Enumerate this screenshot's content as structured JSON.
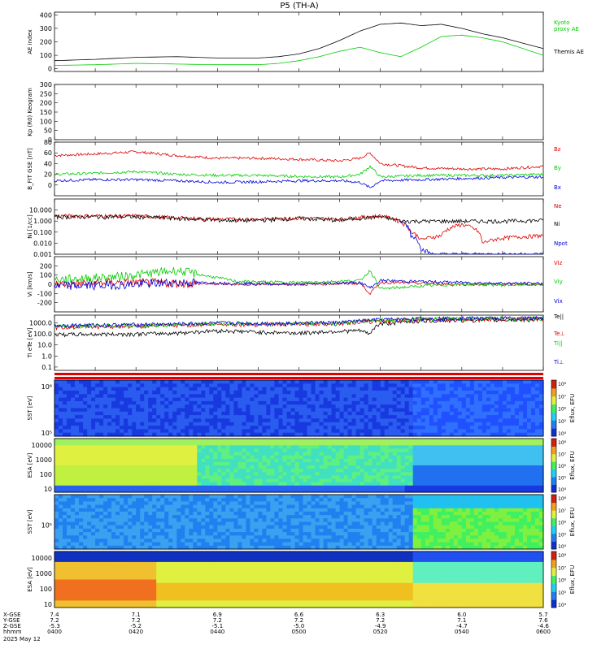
{
  "title": "P5 (TH-A)",
  "date_label": "2025 May 12",
  "colors": {
    "black": "#000000",
    "green": "#00cc00",
    "red": "#dd0000",
    "blue": "#0000dd"
  },
  "colorbar_label": "Eflux, EFU",
  "ephemeris": {
    "row_labels": [
      "X-GSE",
      "Y-GSE",
      "Z-GSE",
      "hhmm"
    ],
    "columns": [
      {
        "x": "7.4",
        "y": "7.2",
        "z": "-5.3",
        "t": "0400"
      },
      {
        "x": "7.1",
        "y": "7.2",
        "z": "-5.2",
        "t": "0420"
      },
      {
        "x": "6.9",
        "y": "7.2",
        "z": "-5.1",
        "t": "0440"
      },
      {
        "x": "6.6",
        "y": "7.2",
        "z": "-5.0",
        "t": "0500"
      },
      {
        "x": "6.3",
        "y": "7.2",
        "z": "-4.9",
        "t": "0520"
      },
      {
        "x": "6.0",
        "y": "7.1",
        "z": "-4.7",
        "t": "0540"
      },
      {
        "x": "5.7",
        "y": "7.6",
        "z": "-4.6",
        "t": "0600"
      }
    ]
  },
  "chart_data": [
    {
      "type": "line",
      "panel": "ae",
      "ylabel": "AE index",
      "ylim": [
        -20,
        420
      ],
      "yticks": [
        "0",
        "100",
        "200",
        "300",
        "400"
      ],
      "ytick_values": [
        0,
        100,
        200,
        300,
        400
      ],
      "x_unit": "minutes after 04:00",
      "series": [
        {
          "name": "Kyoto proxy AE",
          "color": "green",
          "x": [
            0,
            20,
            40,
            60,
            80,
            100,
            110,
            120,
            130,
            140,
            150,
            160,
            170,
            180,
            190,
            200,
            210,
            220,
            240
          ],
          "values": [
            25,
            30,
            40,
            35,
            30,
            30,
            40,
            60,
            90,
            130,
            160,
            120,
            90,
            160,
            240,
            250,
            230,
            200,
            100
          ]
        },
        {
          "name": "Themis AE",
          "color": "black",
          "x": [
            0,
            20,
            40,
            60,
            80,
            100,
            110,
            120,
            130,
            140,
            150,
            160,
            170,
            180,
            190,
            200,
            210,
            220,
            240
          ],
          "values": [
            60,
            70,
            85,
            90,
            80,
            80,
            90,
            110,
            150,
            210,
            280,
            330,
            340,
            320,
            330,
            300,
            260,
            230,
            150
          ]
        }
      ]
    },
    {
      "type": "line",
      "panel": "kp",
      "ylabel": "Kp (R0) Keogram",
      "ylim": [
        0,
        300
      ],
      "yticks": [
        "0",
        "50",
        "100",
        "150",
        "200",
        "250",
        "300"
      ],
      "ytick_values": [
        0,
        50,
        100,
        150,
        200,
        250,
        300
      ],
      "series": []
    },
    {
      "type": "line",
      "panel": "bfield",
      "ylabel": "B_FIT GSE [nT]",
      "ylim": [
        -20,
        80
      ],
      "yticks": [
        "0",
        "20",
        "40",
        "60",
        "80"
      ],
      "ytick_values": [
        0,
        20,
        40,
        60,
        80
      ],
      "series": [
        {
          "name": "Bz",
          "color": "red",
          "x": [
            0,
            20,
            40,
            60,
            80,
            100,
            120,
            140,
            150,
            155,
            160,
            180,
            200,
            220,
            240
          ],
          "values": [
            55,
            58,
            62,
            55,
            50,
            50,
            48,
            45,
            50,
            60,
            40,
            32,
            30,
            30,
            35
          ]
        },
        {
          "name": "By",
          "color": "green",
          "x": [
            0,
            20,
            40,
            60,
            80,
            100,
            120,
            140,
            150,
            155,
            160,
            180,
            200,
            220,
            240
          ],
          "values": [
            20,
            22,
            25,
            20,
            18,
            18,
            16,
            15,
            20,
            35,
            15,
            18,
            18,
            18,
            20
          ]
        },
        {
          "name": "Bx",
          "color": "blue",
          "x": [
            0,
            20,
            40,
            60,
            80,
            100,
            120,
            140,
            150,
            155,
            160,
            180,
            200,
            220,
            240
          ],
          "values": [
            8,
            10,
            10,
            8,
            5,
            6,
            8,
            8,
            5,
            -5,
            8,
            10,
            12,
            14,
            15
          ]
        }
      ]
    },
    {
      "type": "line",
      "panel": "density",
      "ylabel": "Ni [1/cc]",
      "yscale": "log",
      "ylim": [
        0.001,
        100
      ],
      "yticks": [
        "0.001",
        "0.010",
        "0.100",
        "1.000",
        "10.000"
      ],
      "ytick_values": [
        0.001,
        0.01,
        0.1,
        1,
        10
      ],
      "series": [
        {
          "name": "Ne",
          "color": "red",
          "x": [
            0,
            40,
            60,
            80,
            100,
            120,
            140,
            160,
            170,
            175,
            180,
            190,
            200,
            210,
            220,
            240
          ],
          "values": [
            3,
            3,
            2,
            1.5,
            1.5,
            2,
            1.5,
            3,
            0.8,
            0.1,
            0.02,
            0.05,
            0.5,
            0.01,
            0.03,
            0.05
          ]
        },
        {
          "name": "Ni",
          "color": "black",
          "x": [
            0,
            40,
            60,
            80,
            100,
            120,
            140,
            160,
            170,
            180,
            200,
            220,
            240
          ],
          "values": [
            2.5,
            2.5,
            1.8,
            1.2,
            1.2,
            1.8,
            1.2,
            2.5,
            1.0,
            1.0,
            1.0,
            1.0,
            1.2
          ]
        },
        {
          "name": "Npot",
          "color": "blue",
          "x": [
            170,
            175,
            180,
            185,
            195,
            200,
            205,
            210,
            220,
            240
          ],
          "values": [
            1.0,
            0.05,
            0.003,
            0.001,
            0.001,
            0.001,
            0.001,
            0.001,
            0.001,
            0.001
          ]
        }
      ]
    },
    {
      "type": "line",
      "panel": "velocity",
      "ylabel": "Vi [km/s]",
      "ylim": [
        -300,
        300
      ],
      "yticks": [
        "-200",
        "-100",
        "0",
        "100",
        "200"
      ],
      "ytick_values": [
        -200,
        -100,
        0,
        100,
        200
      ],
      "series": [
        {
          "name": "Viz",
          "color": "red",
          "x": [
            0,
            30,
            60,
            90,
            120,
            150,
            155,
            160,
            180,
            200,
            220,
            240
          ],
          "values": [
            0,
            20,
            10,
            0,
            0,
            10,
            -100,
            20,
            10,
            0,
            0,
            0
          ]
        },
        {
          "name": "Viy",
          "color": "green",
          "x": [
            0,
            30,
            60,
            90,
            120,
            150,
            155,
            160,
            180,
            200,
            220,
            240
          ],
          "values": [
            50,
            80,
            150,
            30,
            20,
            40,
            150,
            -50,
            -20,
            0,
            -10,
            0
          ]
        },
        {
          "name": "Vix",
          "color": "blue",
          "x": [
            0,
            30,
            60,
            90,
            120,
            150,
            155,
            160,
            180,
            200,
            220,
            240
          ],
          "values": [
            -20,
            -10,
            20,
            10,
            0,
            20,
            -40,
            40,
            30,
            20,
            10,
            10
          ]
        }
      ]
    },
    {
      "type": "line",
      "panel": "temperature",
      "ylabel": "Ti eTe [eV]",
      "yscale": "log",
      "ylim": [
        0.05,
        5000
      ],
      "yticks": [
        "0.1",
        "1.0",
        "10.0",
        "100.0",
        "1000.0"
      ],
      "ytick_values": [
        0.1,
        1,
        10,
        100,
        1000
      ],
      "series": [
        {
          "name": "Te||",
          "color": "black",
          "x": [
            0,
            40,
            60,
            80,
            100,
            120,
            140,
            150,
            155,
            160,
            180,
            200,
            220,
            240
          ],
          "values": [
            90,
            100,
            120,
            200,
            150,
            120,
            180,
            200,
            90,
            800,
            1500,
            1800,
            1800,
            2000
          ]
        },
        {
          "name": "Te⊥",
          "color": "red",
          "x": [
            0,
            40,
            60,
            80,
            100,
            120,
            140,
            160,
            180,
            200,
            220,
            240
          ],
          "values": [
            400,
            500,
            600,
            800,
            700,
            800,
            900,
            1500,
            2000,
            2200,
            2200,
            2500
          ]
        },
        {
          "name": "Ti||",
          "color": "green",
          "x": [
            0,
            40,
            60,
            80,
            100,
            120,
            140,
            160,
            180,
            200,
            220,
            240
          ],
          "values": [
            500,
            600,
            700,
            900,
            800,
            900,
            1000,
            1800,
            2200,
            2500,
            2500,
            2600
          ]
        },
        {
          "name": "Ti⊥",
          "color": "blue",
          "x": [
            0,
            40,
            60,
            80,
            100,
            120,
            140,
            160,
            180,
            200,
            220,
            240
          ],
          "values": [
            600,
            700,
            800,
            1000,
            900,
            1000,
            1100,
            2000,
            2400,
            2700,
            2700,
            2800
          ]
        }
      ]
    },
    {
      "type": "heatmap",
      "panel": "sst_e",
      "ylabel": "SST [eV]",
      "ytick_labels": [
        "10⁶",
        "10⁵"
      ],
      "colorbar": [
        "10⁴",
        "10⁵",
        "10⁶",
        "10⁷",
        "10⁸"
      ]
    },
    {
      "type": "heatmap",
      "panel": "esa_e",
      "ylabel": "ESA [eV]",
      "ytick_labels": [
        "10000",
        "1000",
        "100",
        "10"
      ],
      "ytick_values": [
        10000,
        1000,
        100,
        10
      ],
      "colorbar": [
        "10⁴",
        "10⁵",
        "10⁶",
        "10⁷",
        "10⁸"
      ]
    },
    {
      "type": "heatmap",
      "panel": "sst_i",
      "ylabel": "SST [eV]",
      "ytick_labels": [
        "10⁵"
      ],
      "colorbar": [
        "10⁴",
        "10⁵",
        "10⁶",
        "10⁷",
        "10⁸"
      ]
    },
    {
      "type": "heatmap",
      "panel": "esa_i",
      "ylabel": "ESA [eV]",
      "ytick_labels": [
        "10000",
        "1000",
        "100",
        "10"
      ],
      "ytick_values": [
        10000,
        1000,
        100,
        10
      ],
      "colorbar": [
        "10⁴",
        "10⁵",
        "10⁶",
        "10⁷",
        "10⁸"
      ]
    }
  ]
}
